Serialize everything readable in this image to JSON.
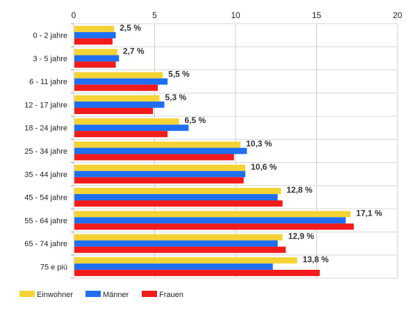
{
  "chart_data": {
    "type": "bar",
    "orientation": "horizontal",
    "categories": [
      "0 - 2 jahre",
      "3 - 5 jahre",
      "6 - 11 jahre",
      "12 - 17 jahre",
      "18 - 24 jahre",
      "25 - 34 jahre",
      "35 - 44 jahre",
      "45 - 54 jahre",
      "55 - 64 jahre",
      "65 - 74 jahre",
      "75 e più"
    ],
    "series": [
      {
        "name": "Einwohner",
        "color": "#f5d335",
        "values": [
          2.5,
          2.7,
          5.5,
          5.3,
          6.5,
          10.3,
          10.6,
          12.8,
          17.1,
          12.9,
          13.8
        ]
      },
      {
        "name": "Männer",
        "color": "#1f6ff0",
        "values": [
          2.6,
          2.8,
          5.8,
          5.6,
          7.1,
          10.7,
          10.6,
          12.6,
          16.8,
          12.6,
          12.3
        ]
      },
      {
        "name": "Frauen",
        "color": "#f21c1c",
        "values": [
          2.4,
          2.6,
          5.2,
          4.9,
          5.8,
          9.9,
          10.5,
          12.9,
          17.3,
          13.1,
          15.2
        ]
      }
    ],
    "data_labels": [
      "2,5 %",
      "2,7 %",
      "5,5 %",
      "5,3 %",
      "6,5 %",
      "10,3 %",
      "10,6 %",
      "12,8 %",
      "17,1 %",
      "12,9 %",
      "13,8 %"
    ],
    "x_ticks": [
      "0",
      "5",
      "10",
      "15",
      "20"
    ],
    "xlim": [
      0,
      20
    ],
    "xaxis_position": "top",
    "grid": true,
    "legend_position": "bottom-left",
    "title": "",
    "xlabel": "",
    "ylabel": ""
  }
}
